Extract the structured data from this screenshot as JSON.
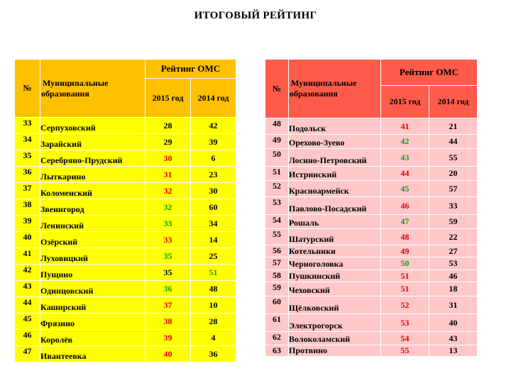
{
  "title": "ИТОГОВЫЙ РЕЙТИНГ",
  "header": {
    "num": "№",
    "municipality_line1": "Муниципальные",
    "municipality_line2": "образования",
    "rating_group": "Рейтинг ОМС",
    "year_2015": "2015 год",
    "year_2014": "2014 год"
  },
  "colors": {
    "left_header": "#FFC000",
    "left_rows": "#FFFF00",
    "right_header": "#FF5B4B",
    "right_rows": "#FFC7C7",
    "red_value": "#E00000",
    "green_value": "#10A020"
  },
  "left_rows": [
    {
      "num": "33",
      "name": "Серпуховский",
      "r2015": "28",
      "r2014": "42",
      "c2015": "",
      "c2014": ""
    },
    {
      "num": "34",
      "name": "Зарайский",
      "r2015": "29",
      "r2014": "39",
      "c2015": "",
      "c2014": ""
    },
    {
      "num": "35",
      "name": "Серебряно-Прудский",
      "r2015": "30",
      "r2014": "6",
      "c2015": "red",
      "c2014": ""
    },
    {
      "num": "36",
      "name": "Лыткарино",
      "r2015": "31",
      "r2014": "23",
      "c2015": "red",
      "c2014": ""
    },
    {
      "num": "37",
      "name": "Коломенский",
      "r2015": "32",
      "r2014": "30",
      "c2015": "red",
      "c2014": ""
    },
    {
      "num": "38",
      "name": "Звенигород",
      "r2015": "32",
      "r2014": "60",
      "c2015": "green",
      "c2014": ""
    },
    {
      "num": "39",
      "name": "Ленинский",
      "r2015": "33",
      "r2014": "34",
      "c2015": "green",
      "c2014": ""
    },
    {
      "num": "40",
      "name": "Озёрский",
      "r2015": "33",
      "r2014": "14",
      "c2015": "red",
      "c2014": ""
    },
    {
      "num": "41",
      "name": "Луховицкий",
      "r2015": "35",
      "r2014": "25",
      "c2015": "green",
      "c2014": ""
    },
    {
      "num": "42",
      "name": "Пущино",
      "r2015": "35",
      "r2014": "51",
      "c2015": "",
      "c2014": "green"
    },
    {
      "num": "43",
      "name": "Одинцовский",
      "r2015": "36",
      "r2014": "48",
      "c2015": "green",
      "c2014": ""
    },
    {
      "num": "44",
      "name": "Каширский",
      "r2015": "37",
      "r2014": "10",
      "c2015": "red",
      "c2014": ""
    },
    {
      "num": "45",
      "name": "Фрязино",
      "r2015": "38",
      "r2014": "28",
      "c2015": "red",
      "c2014": ""
    },
    {
      "num": "46",
      "name": "Королёв",
      "r2015": "39",
      "r2014": "4",
      "c2015": "red",
      "c2014": ""
    },
    {
      "num": "47",
      "name": "Ивантеевка",
      "r2015": "40",
      "r2014": "36",
      "c2015": "red",
      "c2014": ""
    }
  ],
  "right_rows": [
    {
      "num": "48",
      "name": "Подольск",
      "r2015": "41",
      "r2014": "21",
      "c2015": "red",
      "c2014": ""
    },
    {
      "num": "49",
      "name": "Орехово-Зуево",
      "r2015": "42",
      "r2014": "44",
      "c2015": "green",
      "c2014": ""
    },
    {
      "num": "50",
      "name": "Лосино-Петровский",
      "r2015": "43",
      "r2014": "55",
      "c2015": "green",
      "c2014": ""
    },
    {
      "num": "51",
      "name": "Истринский",
      "r2015": "44",
      "r2014": "20",
      "c2015": "red",
      "c2014": ""
    },
    {
      "num": "52",
      "name": "Красноармейск",
      "r2015": "45",
      "r2014": "57",
      "c2015": "green",
      "c2014": ""
    },
    {
      "num": "53",
      "name": "Павлово-Посадский",
      "r2015": "46",
      "r2014": "33",
      "c2015": "red",
      "c2014": ""
    },
    {
      "num": "54",
      "name": "Рошаль",
      "r2015": "47",
      "r2014": "59",
      "c2015": "green",
      "c2014": ""
    },
    {
      "num": "55",
      "name": "Шатурский",
      "r2015": "48",
      "r2014": "22",
      "c2015": "red",
      "c2014": ""
    },
    {
      "num": "56",
      "name": "Котельники",
      "r2015": "49",
      "r2014": "27",
      "c2015": "red",
      "c2014": ""
    },
    {
      "num": "57",
      "name": "Черноголовка",
      "r2015": "50",
      "r2014": "53",
      "c2015": "green",
      "c2014": ""
    },
    {
      "num": "58",
      "name": "Пушкинский",
      "r2015": "51",
      "r2014": "46",
      "c2015": "red",
      "c2014": ""
    },
    {
      "num": "59",
      "name": "Чеховский",
      "r2015": "51",
      "r2014": "18",
      "c2015": "red",
      "c2014": ""
    },
    {
      "num": "60",
      "name": "Щёлковский",
      "r2015": "52",
      "r2014": "31",
      "c2015": "red",
      "c2014": ""
    },
    {
      "num": "61",
      "name": "Электрогорск",
      "r2015": "53",
      "r2014": "40",
      "c2015": "red",
      "c2014": ""
    },
    {
      "num": "62",
      "name": "Волоколамский",
      "r2015": "54",
      "r2014": "43",
      "c2015": "red",
      "c2014": ""
    },
    {
      "num": "63",
      "name": "Протвино",
      "r2015": "55",
      "r2014": "13",
      "c2015": "red",
      "c2014": ""
    }
  ]
}
